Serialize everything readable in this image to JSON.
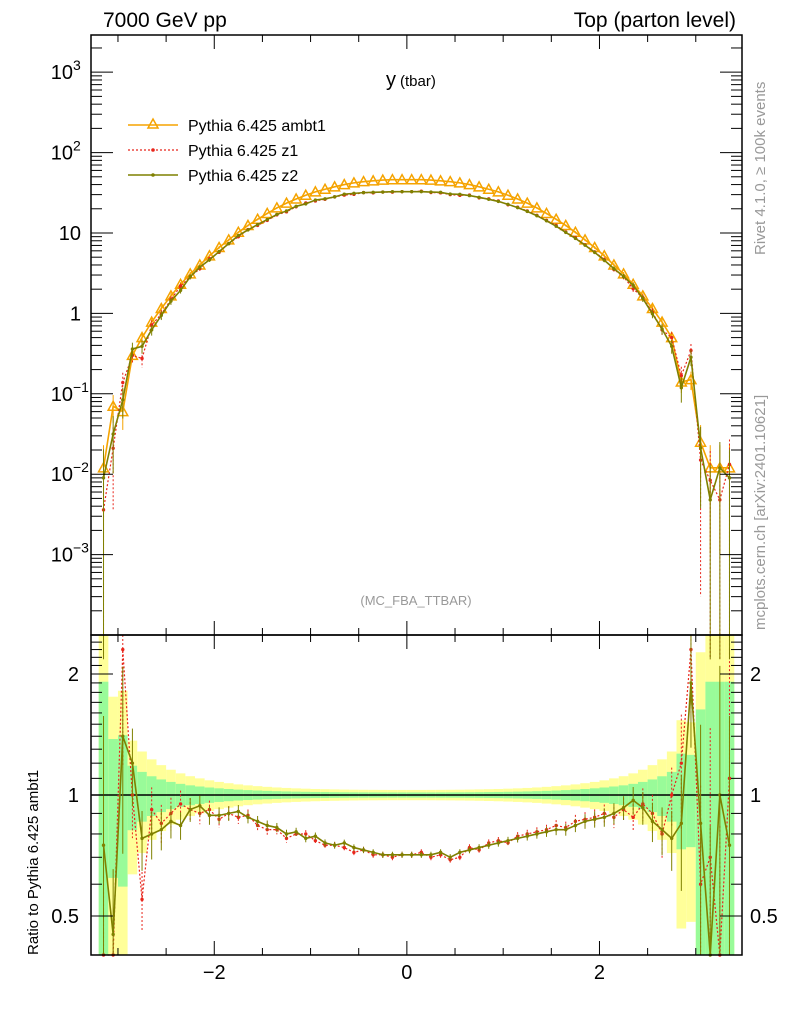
{
  "header": {
    "left": "7000 GeV pp",
    "right": "Top (parton level)"
  },
  "side_labels": {
    "rivet": "Rivet 4.1.0, ≥ 100k events",
    "mcplots": "mcplots.cern.ch [arXiv:2401.10621]"
  },
  "chart_data": {
    "type": "line",
    "title": "y",
    "title_suffix": "(tbar)",
    "analysis_tag": "(MC_FBA_TTBAR)",
    "xlabel": "",
    "ylabel_ratio": "Ratio to Pythia 6.425 ambt1",
    "xlim": [
      -3.28,
      3.48
    ],
    "ylim_main": [
      0.0001,
      2900
    ],
    "yscale_main": "log",
    "ylim_ratio": [
      0.4,
      2.5
    ],
    "yscale_ratio": "log",
    "legend_position": "top-left",
    "x_ticks": [
      {
        "v": -2,
        "label": "−2"
      },
      {
        "v": 0,
        "label": "0"
      },
      {
        "v": 2,
        "label": "2"
      }
    ],
    "y_ticks_main": [
      {
        "v": 1000,
        "base": "10",
        "exp": "3"
      },
      {
        "v": 100,
        "base": "10",
        "exp": "2"
      },
      {
        "v": 10,
        "base": "10",
        "exp": ""
      },
      {
        "v": 1,
        "base": "1",
        "exp": ""
      },
      {
        "v": 0.1,
        "base": "10",
        "exp": "−1"
      },
      {
        "v": 0.01,
        "base": "10",
        "exp": "−2"
      },
      {
        "v": 0.001,
        "base": "10",
        "exp": "−3"
      }
    ],
    "y_ticks_ratio": [
      {
        "v": 2,
        "label": "2"
      },
      {
        "v": 1,
        "label": "1"
      },
      {
        "v": 0.5,
        "label": "0.5"
      }
    ],
    "bin_width": 0.1,
    "x": [
      -3.15,
      -3.05,
      -2.95,
      -2.85,
      -2.75,
      -2.65,
      -2.55,
      -2.45,
      -2.35,
      -2.25,
      -2.15,
      -2.05,
      -1.95,
      -1.85,
      -1.75,
      -1.65,
      -1.55,
      -1.45,
      -1.35,
      -1.25,
      -1.15,
      -1.05,
      -0.95,
      -0.85,
      -0.75,
      -0.65,
      -0.55,
      -0.45,
      -0.35,
      -0.25,
      -0.15,
      -0.05,
      0.05,
      0.15,
      0.25,
      0.35,
      0.45,
      0.55,
      0.65,
      0.75,
      0.85,
      0.95,
      1.05,
      1.15,
      1.25,
      1.35,
      1.45,
      1.55,
      1.65,
      1.75,
      1.85,
      1.95,
      2.05,
      2.15,
      2.25,
      2.35,
      2.45,
      2.55,
      2.65,
      2.75,
      2.85,
      2.95,
      3.05,
      3.15,
      3.25,
      3.35
    ],
    "series": [
      {
        "name": "Pythia 6.425 ambt1",
        "color": "#f5a300",
        "style": "solid-triangle",
        "values": [
          0.012,
          0.07,
          0.06,
          0.3,
          0.5,
          0.78,
          1.15,
          1.65,
          2.3,
          3.1,
          4.0,
          5.2,
          6.6,
          8.2,
          10.2,
          12.4,
          14.8,
          17.5,
          20.5,
          23.5,
          26.5,
          29.5,
          32.5,
          35,
          37.5,
          40,
          42,
          43.5,
          44.5,
          45.5,
          46,
          46,
          46,
          46,
          45.5,
          44.5,
          43.5,
          42,
          40,
          37.5,
          35,
          32.5,
          29.5,
          26.5,
          23.5,
          20.5,
          17.5,
          14.8,
          12.4,
          10.2,
          8.2,
          6.6,
          5.2,
          4.0,
          3.1,
          2.3,
          1.65,
          1.15,
          0.78,
          0.5,
          0.14,
          0.15,
          0.025,
          0.012,
          0.012,
          0.012
        ],
        "ratio": null
      },
      {
        "name": "Pythia 6.425 z1",
        "color": "#e8251b",
        "style": "dotted-dot",
        "ratio": [
          0.3,
          0.3,
          2.3,
          1.0,
          0.55,
          0.92,
          0.85,
          0.9,
          0.95,
          0.92,
          0.9,
          0.92,
          0.87,
          0.9,
          0.88,
          0.89,
          0.84,
          0.82,
          0.82,
          0.78,
          0.8,
          0.8,
          0.77,
          0.75,
          0.75,
          0.74,
          0.72,
          0.73,
          0.71,
          0.71,
          0.7,
          0.71,
          0.71,
          0.72,
          0.7,
          0.71,
          0.69,
          0.7,
          0.74,
          0.73,
          0.76,
          0.77,
          0.76,
          0.79,
          0.8,
          0.81,
          0.82,
          0.84,
          0.83,
          0.86,
          0.87,
          0.88,
          0.9,
          0.88,
          0.92,
          0.88,
          0.95,
          0.9,
          0.8,
          1.0,
          1.2,
          2.3,
          0.6,
          0.7,
          0.4,
          1.1
        ]
      },
      {
        "name": "Pythia 6.425 z2",
        "color": "#7f8000",
        "style": "solid-dot",
        "ratio": [
          0.75,
          0.45,
          1.4,
          1.2,
          0.78,
          0.8,
          0.82,
          0.86,
          0.84,
          0.92,
          0.94,
          0.89,
          0.89,
          0.9,
          0.91,
          0.88,
          0.86,
          0.84,
          0.83,
          0.8,
          0.81,
          0.78,
          0.79,
          0.76,
          0.75,
          0.76,
          0.74,
          0.73,
          0.72,
          0.71,
          0.71,
          0.71,
          0.71,
          0.71,
          0.71,
          0.72,
          0.7,
          0.72,
          0.73,
          0.74,
          0.75,
          0.76,
          0.77,
          0.78,
          0.79,
          0.8,
          0.81,
          0.82,
          0.82,
          0.84,
          0.86,
          0.87,
          0.88,
          0.9,
          0.93,
          0.97,
          0.93,
          0.86,
          0.82,
          0.78,
          0.85,
          1.9,
          0.85,
          0.4,
          1.0,
          0.75
        ]
      }
    ],
    "band_colors": {
      "inner": "#99fb99",
      "outer": "#ffff99"
    }
  }
}
